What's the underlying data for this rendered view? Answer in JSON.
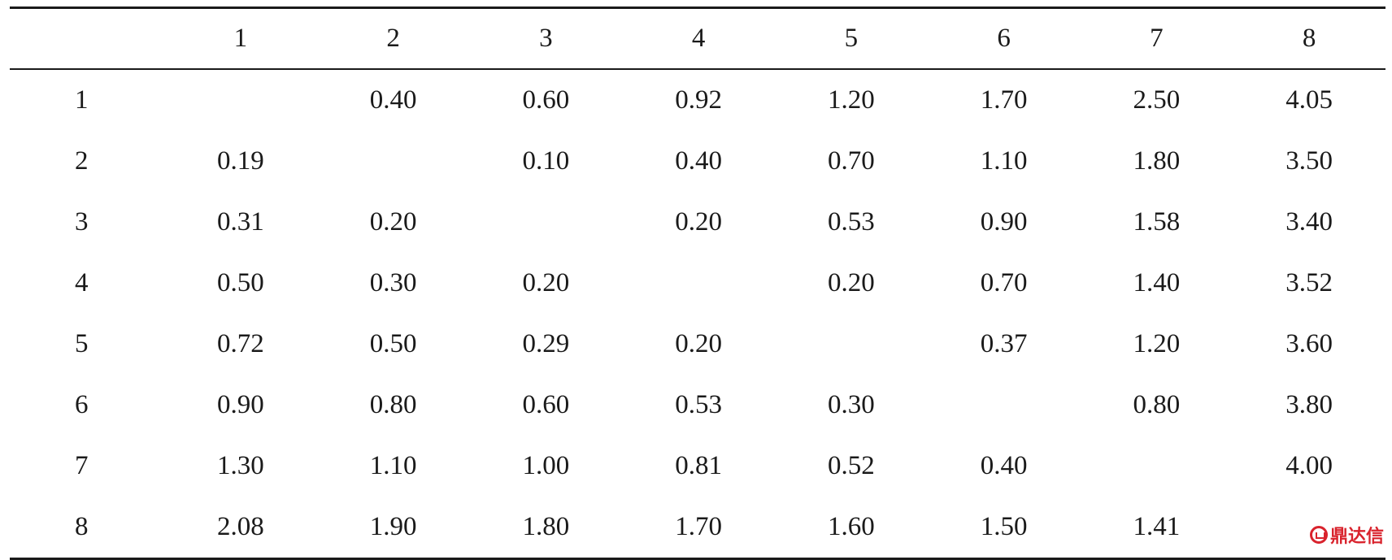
{
  "table": {
    "column_headers": [
      "",
      "1",
      "2",
      "3",
      "4",
      "5",
      "6",
      "7",
      "8"
    ],
    "rows": [
      {
        "label": "1",
        "cells": [
          "",
          "0.40",
          "0.60",
          "0.92",
          "1.20",
          "1.70",
          "2.50",
          "4.05"
        ]
      },
      {
        "label": "2",
        "cells": [
          "0.19",
          "",
          "0.10",
          "0.40",
          "0.70",
          "1.10",
          "1.80",
          "3.50"
        ]
      },
      {
        "label": "3",
        "cells": [
          "0.31",
          "0.20",
          "",
          "0.20",
          "0.53",
          "0.90",
          "1.58",
          "3.40"
        ]
      },
      {
        "label": "4",
        "cells": [
          "0.50",
          "0.30",
          "0.20",
          "",
          "0.20",
          "0.70",
          "1.40",
          "3.52"
        ]
      },
      {
        "label": "5",
        "cells": [
          "0.72",
          "0.50",
          "0.29",
          "0.20",
          "",
          "0.37",
          "1.20",
          "3.60"
        ]
      },
      {
        "label": "6",
        "cells": [
          "0.90",
          "0.80",
          "0.60",
          "0.53",
          "0.30",
          "",
          "0.80",
          "3.80"
        ]
      },
      {
        "label": "7",
        "cells": [
          "1.30",
          "1.10",
          "1.00",
          "0.81",
          "0.52",
          "0.40",
          "",
          "4.00"
        ]
      },
      {
        "label": "8",
        "cells": [
          "2.08",
          "1.90",
          "1.80",
          "1.70",
          "1.60",
          "1.50",
          "1.41",
          ""
        ]
      }
    ]
  },
  "watermark": {
    "text": "鼎达信",
    "icon": "dingdaxin-logo-icon",
    "color": "#d9232d"
  }
}
